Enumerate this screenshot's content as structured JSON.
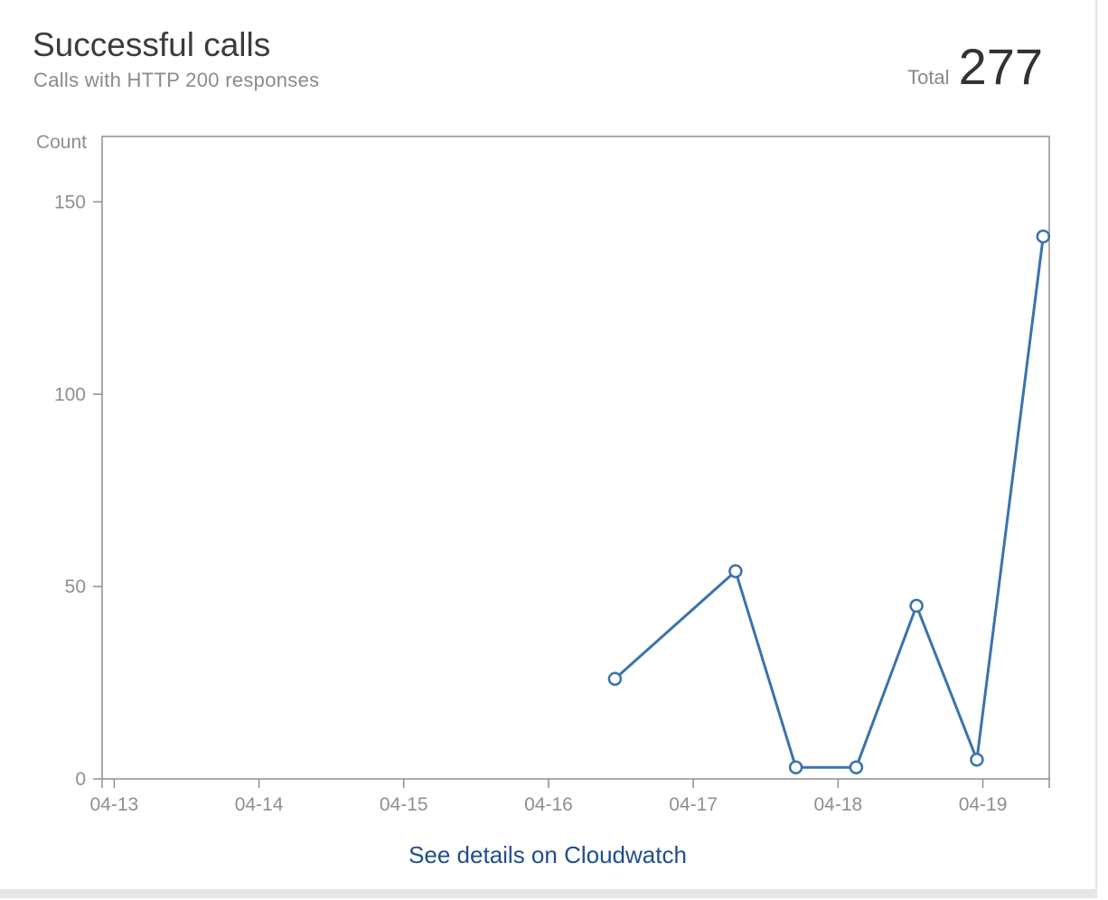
{
  "header": {
    "title": "Successful calls",
    "subtitle": "Calls with HTTP 200 responses",
    "total_label": "Total",
    "total_value": "277"
  },
  "footer": {
    "link_label": "See details on Cloudwatch"
  },
  "colors": {
    "line": "#3a73ad",
    "axis": "#8f8f8f",
    "link": "#1f4e8c"
  },
  "chart_data": {
    "type": "line",
    "ylabel": "Count",
    "xlabel": "",
    "ylim": [
      0,
      167
    ],
    "yticks": [
      0,
      50,
      100,
      150
    ],
    "xlim": [
      "04-12 22:00",
      "04-19 11:00"
    ],
    "xticks": [
      "04-13",
      "04-14",
      "04-15",
      "04-16",
      "04-17",
      "04-18",
      "04-19"
    ],
    "grid": false,
    "series": [
      {
        "x": [
          "04-16 11:00",
          "04-17 07:00",
          "04-17 17:00",
          "04-18 03:00",
          "04-18 13:00",
          "04-18 23:00",
          "04-19 10:00"
        ],
        "values": [
          26,
          54,
          3,
          3,
          45,
          5,
          141
        ]
      }
    ]
  }
}
